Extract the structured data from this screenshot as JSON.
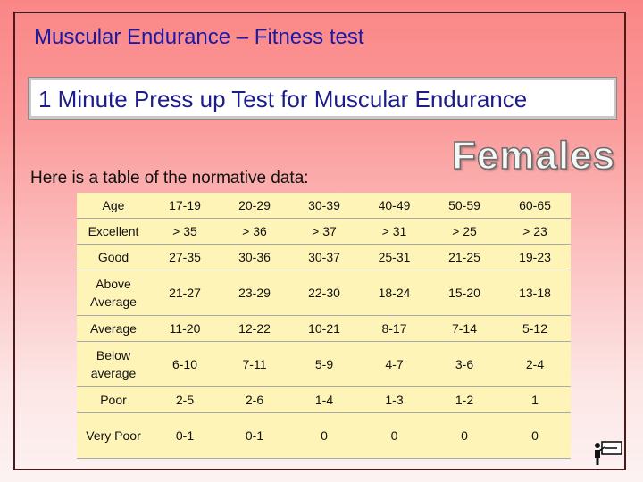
{
  "slide": {
    "title": "Muscular Endurance – Fitness test",
    "subtitle": "1 Minute Press up Test for Muscular Endurance",
    "intro": "Here is a table of the normative data:",
    "badge": "Females"
  },
  "table": {
    "header": [
      "Age",
      "17-19",
      "20-29",
      "30-39",
      "40-49",
      "50-59",
      "60-65"
    ],
    "rows": [
      {
        "label": "Excellent",
        "values": [
          "> 35",
          "> 36",
          "> 37",
          "> 31",
          "> 25",
          "> 23"
        ]
      },
      {
        "label": "Good",
        "values": [
          "27-35",
          "30-36",
          "30-37",
          "25-31",
          "21-25",
          "19-23"
        ]
      },
      {
        "label": "Above Average",
        "values": [
          "21-27",
          "23-29",
          "22-30",
          "18-24",
          "15-20",
          "13-18"
        ]
      },
      {
        "label": "Average",
        "values": [
          "11-20",
          "12-22",
          "10-21",
          "8-17",
          "7-14",
          "5-12"
        ]
      },
      {
        "label": "Below average",
        "values": [
          "6-10",
          "7-11",
          "5-9",
          "4-7",
          "3-6",
          "2-4"
        ]
      },
      {
        "label": "Poor",
        "values": [
          "2-5",
          "2-6",
          "1-4",
          "1-3",
          "1-2",
          "1"
        ]
      },
      {
        "label": "Very Poor",
        "values": [
          "0-1",
          "0-1",
          "0",
          "0",
          "0",
          "0"
        ]
      }
    ]
  },
  "icons": {
    "corner": "presenter-at-board-icon"
  }
}
